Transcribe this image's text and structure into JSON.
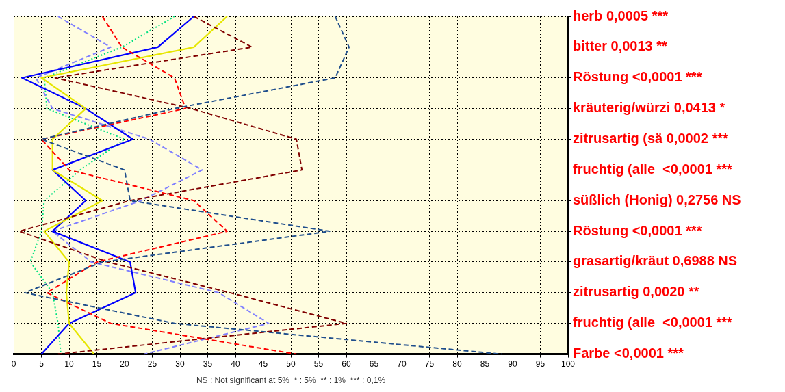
{
  "chart_data": {
    "type": "line",
    "orientation": "horizontal",
    "categories": [
      "herb 0,0005 ***",
      "bitter 0,0013 **",
      "Röstung <0,0001 ***",
      "kräuterig/würzi 0,0413 *",
      "zitrusartig (sä 0,0002 ***",
      "fruchtig (alle  <0,0001 ***",
      "süßlich (Honig) 0,2756 NS",
      "Röstung <0,0001 ***",
      "grasartig/kräut 0,6988 NS",
      "zitrusartig 0,0020 **",
      "fruchtig (alle  <0,0001 ***",
      "Farbe <0,0001 ***"
    ],
    "series": [
      {
        "color": "#1f4e8c",
        "line_style": "dashed",
        "values": [
          58,
          60.5,
          58,
          29,
          5,
          20,
          21,
          57,
          16,
          2,
          29,
          88
        ]
      },
      {
        "color": "#ff0000",
        "line_style": "dashed",
        "values": [
          16,
          19.5,
          29,
          31,
          5,
          10,
          32.5,
          38.5,
          15,
          6,
          17.5,
          51
        ]
      },
      {
        "color": "#800000",
        "line_style": "dashed",
        "values": [
          32.5,
          43,
          7.5,
          32,
          51,
          52,
          21,
          1,
          17,
          39,
          60,
          8
        ]
      },
      {
        "color": "#e6e600",
        "line_style": "solid",
        "values": [
          38.5,
          32.5,
          5,
          13,
          7,
          7,
          16,
          5.5,
          10,
          9.5,
          10,
          14.5
        ]
      },
      {
        "color": "#0000ff",
        "line_style": "solid",
        "values": [
          32.5,
          26,
          1.5,
          13,
          21.5,
          7,
          13,
          7,
          21,
          22,
          10,
          5
        ]
      },
      {
        "color": "#8080ff",
        "line_style": "dashed",
        "values": [
          8,
          17.5,
          4,
          7,
          24.5,
          34,
          23,
          7,
          14,
          37,
          46,
          23.5
        ]
      },
      {
        "color": "#00e080",
        "line_style": "dotted",
        "values": [
          29,
          19.5,
          5.5,
          6,
          20,
          12,
          5.5,
          5,
          3,
          7,
          8,
          8.5
        ]
      }
    ],
    "xlim": [
      0,
      100
    ],
    "xticks": [
      0,
      5,
      10,
      15,
      20,
      25,
      30,
      35,
      40,
      45,
      50,
      55,
      60,
      65,
      70,
      75,
      80,
      85,
      90,
      95,
      100
    ],
    "grid": true,
    "legend": false,
    "marker": "none",
    "annotations": [
      "NS : Not significant at 5%  * : 5%  ** : 1%  *** : 0,1%"
    ]
  }
}
